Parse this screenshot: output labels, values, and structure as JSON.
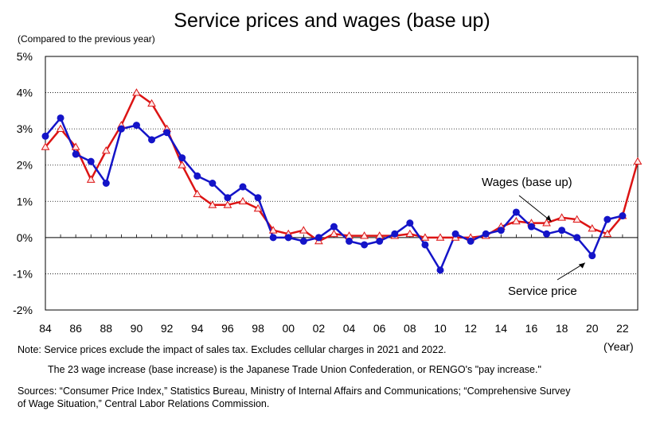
{
  "title": "Service prices and wages (base up)",
  "unit_label": "(Compared to the previous year)",
  "x_axis_title": "(Year)",
  "notes": [
    "Note: Service prices exclude the impact of sales tax. Excludes cellular charges in 2021 and 2022.",
    "The 23 wage increase (base increase) is the Japanese Trade Union Confederation, or RENGO's \"pay increase.\"",
    "Sources: “Consumer Price Index,” Statistics Bureau, Ministry of Internal Affairs and Communications; “Comprehensive Survey",
    "of Wage Situation,” Central Labor Relations Commission."
  ],
  "colors": {
    "service": "#1414c8",
    "wages": "#dc1414",
    "marker_fill": "#ffe6e6",
    "grid": "#000000"
  },
  "chart_data": {
    "type": "line",
    "title": "Service prices and wages (base up)",
    "ylabel": "(Compared to the previous year)",
    "xlabel": "(Year)",
    "ylim": [
      -2,
      5
    ],
    "xlim": [
      1984,
      2023
    ],
    "y_ticks": [
      5,
      4,
      3,
      2,
      1,
      0,
      -1,
      -2
    ],
    "y_tick_labels": [
      "5%",
      "4%",
      "3%",
      "2%",
      "1%",
      "0%",
      "-1%",
      "-2%"
    ],
    "x_ticks": [
      1984,
      1986,
      1988,
      1990,
      1992,
      1994,
      1996,
      1998,
      2000,
      2002,
      2004,
      2006,
      2008,
      2010,
      2012,
      2014,
      2016,
      2018,
      2020,
      2022
    ],
    "x_tick_labels": [
      "84",
      "86",
      "88",
      "90",
      "92",
      "94",
      "96",
      "98",
      "00",
      "02",
      "04",
      "06",
      "08",
      "10",
      "12",
      "14",
      "16",
      "18",
      "20",
      "22"
    ],
    "grid": true,
    "series": [
      {
        "name": "Service price",
        "marker": "circle",
        "x": [
          1984,
          1985,
          1986,
          1987,
          1988,
          1989,
          1990,
          1991,
          1992,
          1993,
          1994,
          1995,
          1996,
          1997,
          1998,
          1999,
          2000,
          2001,
          2002,
          2003,
          2004,
          2005,
          2006,
          2007,
          2008,
          2009,
          2010,
          2011,
          2012,
          2013,
          2014,
          2015,
          2016,
          2017,
          2018,
          2019,
          2020,
          2021,
          2022
        ],
        "values": [
          2.8,
          3.3,
          2.3,
          2.1,
          1.5,
          3.0,
          3.1,
          2.7,
          2.9,
          2.2,
          1.7,
          1.5,
          1.1,
          1.4,
          1.1,
          0.0,
          0.0,
          -0.1,
          0.0,
          0.3,
          -0.1,
          -0.2,
          -0.1,
          0.1,
          0.4,
          -0.2,
          -0.9,
          0.1,
          -0.1,
          0.1,
          0.2,
          0.7,
          0.3,
          0.1,
          0.2,
          0.0,
          -0.5,
          0.5,
          0.6
        ]
      },
      {
        "name": "Wages (base up)",
        "marker": "triangle",
        "x": [
          1984,
          1985,
          1986,
          1987,
          1988,
          1989,
          1990,
          1991,
          1992,
          1993,
          1994,
          1995,
          1996,
          1997,
          1998,
          1999,
          2000,
          2001,
          2002,
          2003,
          2004,
          2005,
          2006,
          2007,
          2008,
          2009,
          2010,
          2011,
          2012,
          2013,
          2014,
          2015,
          2016,
          2017,
          2018,
          2019,
          2020,
          2021,
          2022,
          2023
        ],
        "values": [
          2.5,
          3.0,
          2.5,
          1.6,
          2.4,
          3.1,
          4.0,
          3.7,
          3.0,
          2.0,
          1.2,
          0.9,
          0.9,
          1.0,
          0.8,
          0.2,
          0.1,
          0.2,
          -0.1,
          0.1,
          0.05,
          0.05,
          0.05,
          0.05,
          0.1,
          0.0,
          0.0,
          0.0,
          0.0,
          0.05,
          0.3,
          0.45,
          0.4,
          0.4,
          0.55,
          0.5,
          0.25,
          0.1,
          0.6,
          2.1
        ]
      }
    ],
    "annotations": [
      {
        "text": "Wages (base up)",
        "target_series": "Wages (base up)",
        "target_x": 2017.5
      },
      {
        "text": "Service price",
        "target_series": "Service price",
        "target_x": 2020
      }
    ]
  }
}
